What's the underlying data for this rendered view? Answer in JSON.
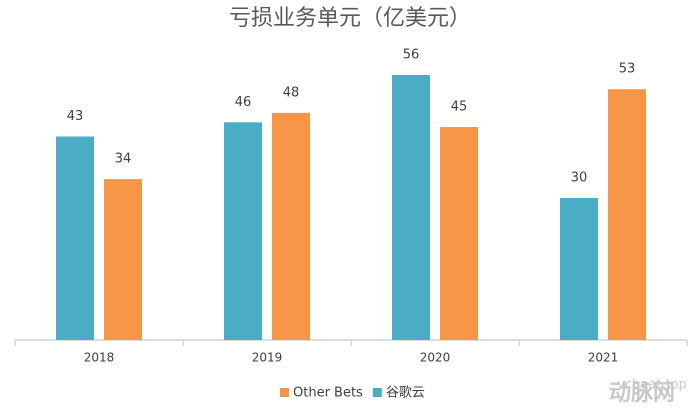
{
  "chart_data": {
    "type": "bar",
    "title": "亏损业务单元（亿美元）",
    "categories": [
      "2018",
      "2019",
      "2020",
      "2021"
    ],
    "series": [
      {
        "name": "谷歌云",
        "color": "#4bacc6",
        "values": [
          43,
          46,
          56,
          30
        ]
      },
      {
        "name": "Other Bets",
        "color": "#f79646",
        "values": [
          34,
          48,
          45,
          53
        ]
      }
    ],
    "legend": "bottom",
    "watermark": "vcbeat.top",
    "watermark_logo": "动脉网"
  }
}
